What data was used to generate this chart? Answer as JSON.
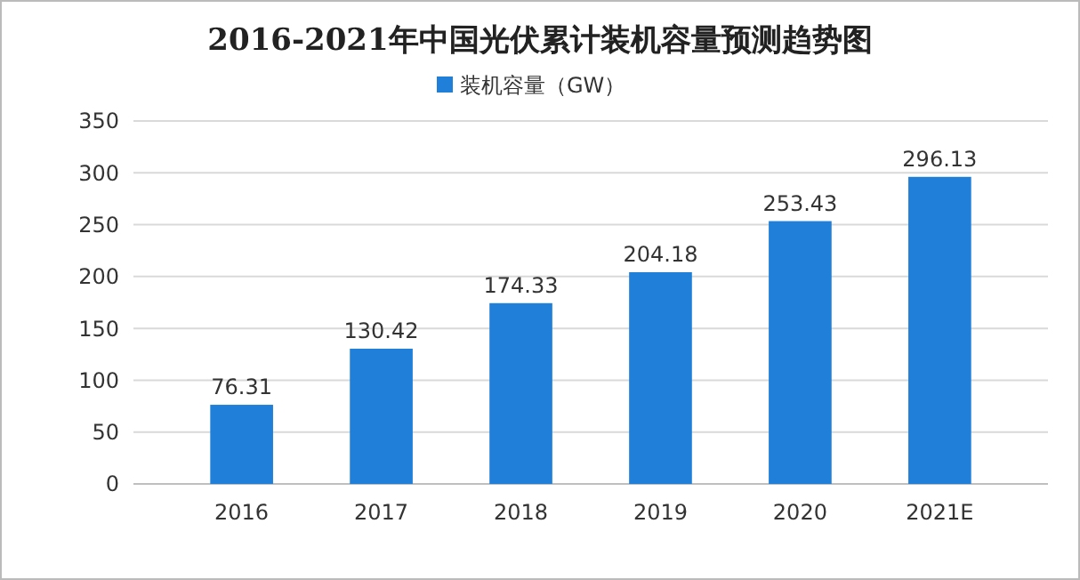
{
  "chart_data": {
    "type": "bar",
    "title": "2016-2021年中国光伏累计装机容量预测趋势图",
    "categories": [
      "2016",
      "2017",
      "2018",
      "2019",
      "2020",
      "2021E"
    ],
    "series": [
      {
        "name": "装机容量（GW）",
        "color": "#1f7fd9",
        "values": [
          76.31,
          130.42,
          174.33,
          204.18,
          253.43,
          296.13
        ]
      }
    ],
    "ylim": [
      0,
      350
    ],
    "yticks": [
      0,
      50,
      100,
      150,
      200,
      250,
      300,
      350
    ],
    "grid": "y",
    "legend": "top",
    "data_labels": true
  }
}
